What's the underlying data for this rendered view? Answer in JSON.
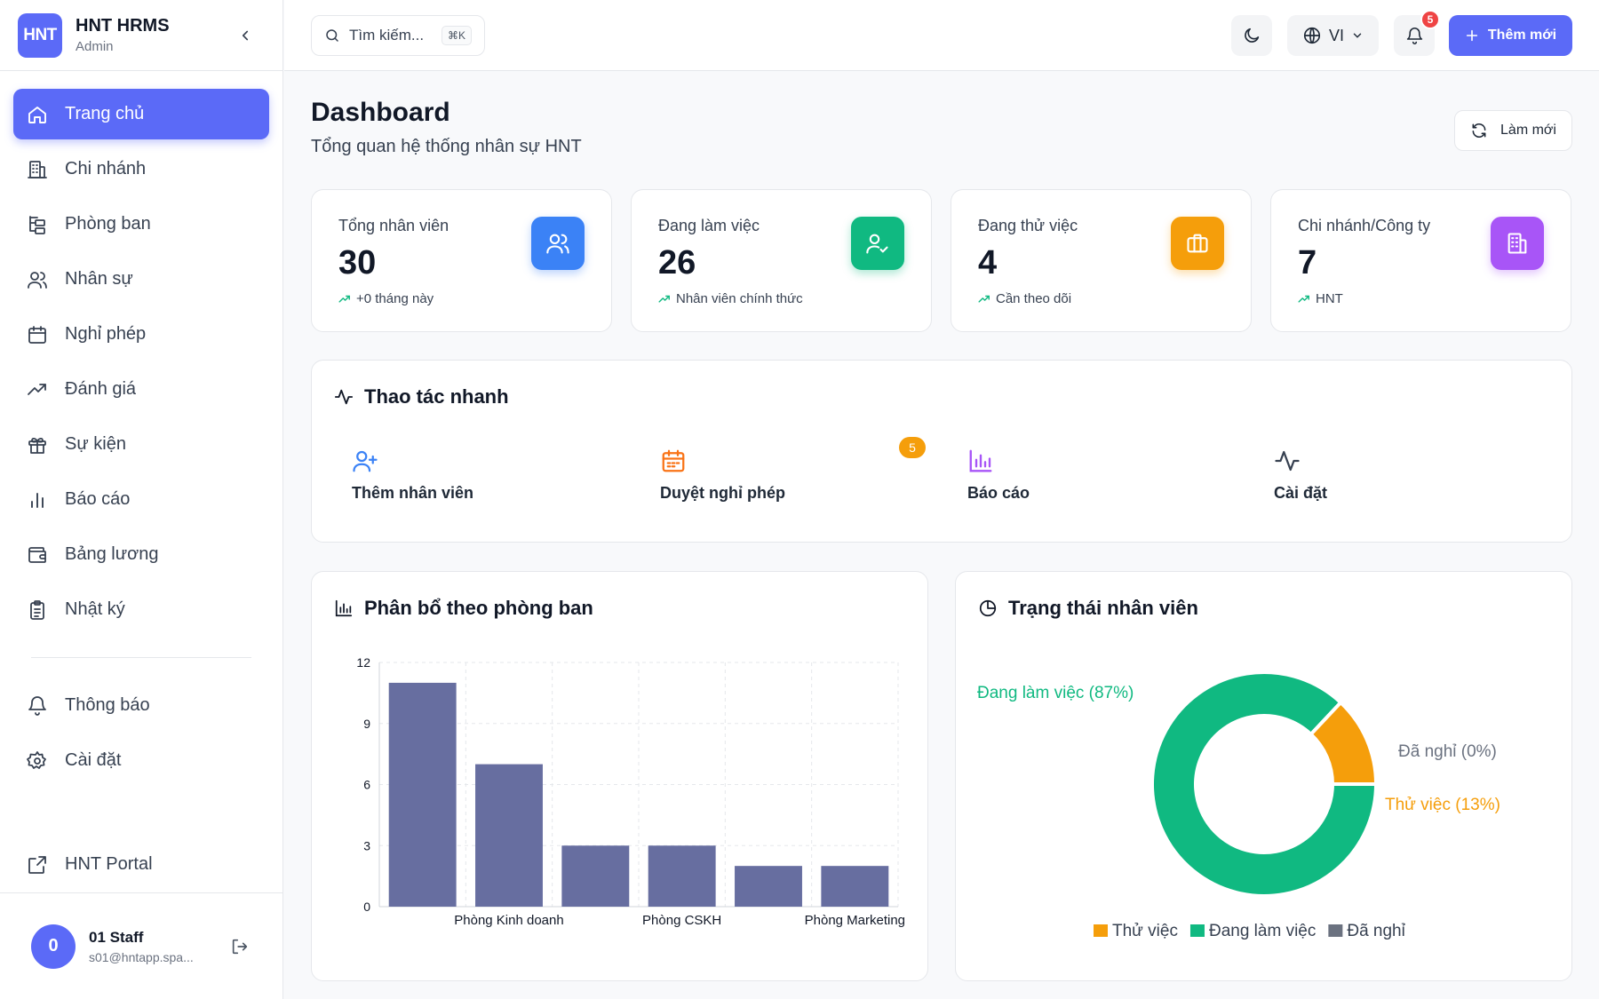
{
  "brand": {
    "logo": "HNT",
    "name": "HNT HRMS",
    "role": "Admin"
  },
  "sidebar": {
    "items": [
      {
        "label": "Trang chủ",
        "icon": "home-icon",
        "active": true
      },
      {
        "label": "Chi nhánh",
        "icon": "building-icon"
      },
      {
        "label": "Phòng ban",
        "icon": "org-tree-icon"
      },
      {
        "label": "Nhân sự",
        "icon": "users-icon"
      },
      {
        "label": "Nghỉ phép",
        "icon": "calendar-icon"
      },
      {
        "label": "Đánh giá",
        "icon": "trending-up-icon"
      },
      {
        "label": "Sự kiện",
        "icon": "gift-icon"
      },
      {
        "label": "Báo cáo",
        "icon": "bar-chart-icon"
      },
      {
        "label": "Bảng lương",
        "icon": "wallet-icon"
      },
      {
        "label": "Nhật ký",
        "icon": "clipboard-icon"
      }
    ],
    "secondary": [
      {
        "label": "Thông báo",
        "icon": "bell-icon"
      },
      {
        "label": "Cài đặt",
        "icon": "gear-icon"
      }
    ],
    "portal": {
      "label": "HNT Portal",
      "icon": "external-link-icon"
    }
  },
  "user": {
    "initial": "0",
    "name": "01 Staff",
    "email": "s01@hntapp.spa..."
  },
  "topbar": {
    "search_placeholder": "Tìm kiếm...",
    "search_shortcut": "⌘K",
    "language": "VI",
    "notification_count": "5",
    "add_label": "Thêm mới"
  },
  "page": {
    "title": "Dashboard",
    "subtitle": "Tổng quan hệ thống nhân sự HNT",
    "refresh_label": "Làm mới"
  },
  "stats": [
    {
      "label": "Tổng nhân viên",
      "value": "30",
      "note": "+0 tháng này",
      "color": "#3b82f6"
    },
    {
      "label": "Đang làm việc",
      "value": "26",
      "note": "Nhân viên chính thức",
      "color": "#10b981"
    },
    {
      "label": "Đang thử việc",
      "value": "4",
      "note": "Cần theo dõi",
      "color": "#f59e0b"
    },
    {
      "label": "Chi nhánh/Công ty",
      "value": "7",
      "note": "HNT",
      "color": "#a855f7"
    }
  ],
  "quick_actions": {
    "title": "Thao tác nhanh",
    "items": [
      {
        "label": "Thêm nhân viên",
        "icon": "user-plus-icon",
        "color": "#3b82f6"
      },
      {
        "label": "Duyệt nghỉ phép",
        "icon": "calendar-icon",
        "color": "#f97316",
        "badge": "5"
      },
      {
        "label": "Báo cáo",
        "icon": "bar-chart-icon",
        "color": "#a855f7"
      },
      {
        "label": "Cài đặt",
        "icon": "activity-icon",
        "color": "#374151"
      }
    ]
  },
  "panels": {
    "department_title": "Phân bổ theo phòng ban",
    "status_title": "Trạng thái nhân viên"
  },
  "chart_data": [
    {
      "type": "bar",
      "title": "Phân bổ theo phòng ban",
      "categories": [
        "",
        "Phòng Kinh doanh",
        "",
        "Phòng CSKH",
        "",
        "Phòng Marketing"
      ],
      "values": [
        11,
        7,
        3,
        3,
        2,
        2
      ],
      "ylim": [
        0,
        12
      ],
      "yticks": [
        0,
        3,
        6,
        9,
        12
      ],
      "grid": true,
      "color": "#676ea0"
    },
    {
      "type": "pie",
      "title": "Trạng thái nhân viên",
      "donut": true,
      "slices": [
        {
          "name": "Đang làm việc",
          "value": 87,
          "label": "Đang làm việc (87%)",
          "color": "#10b981"
        },
        {
          "name": "Đã nghỉ",
          "value": 0,
          "label": "Đã nghỉ (0%)",
          "color": "#6b7280"
        },
        {
          "name": "Thử việc",
          "value": 13,
          "label": "Thử việc (13%)",
          "color": "#f59e0b"
        }
      ],
      "legend": [
        "Thử việc",
        "Đang làm việc",
        "Đã nghỉ"
      ],
      "legend_position": "bottom"
    }
  ]
}
